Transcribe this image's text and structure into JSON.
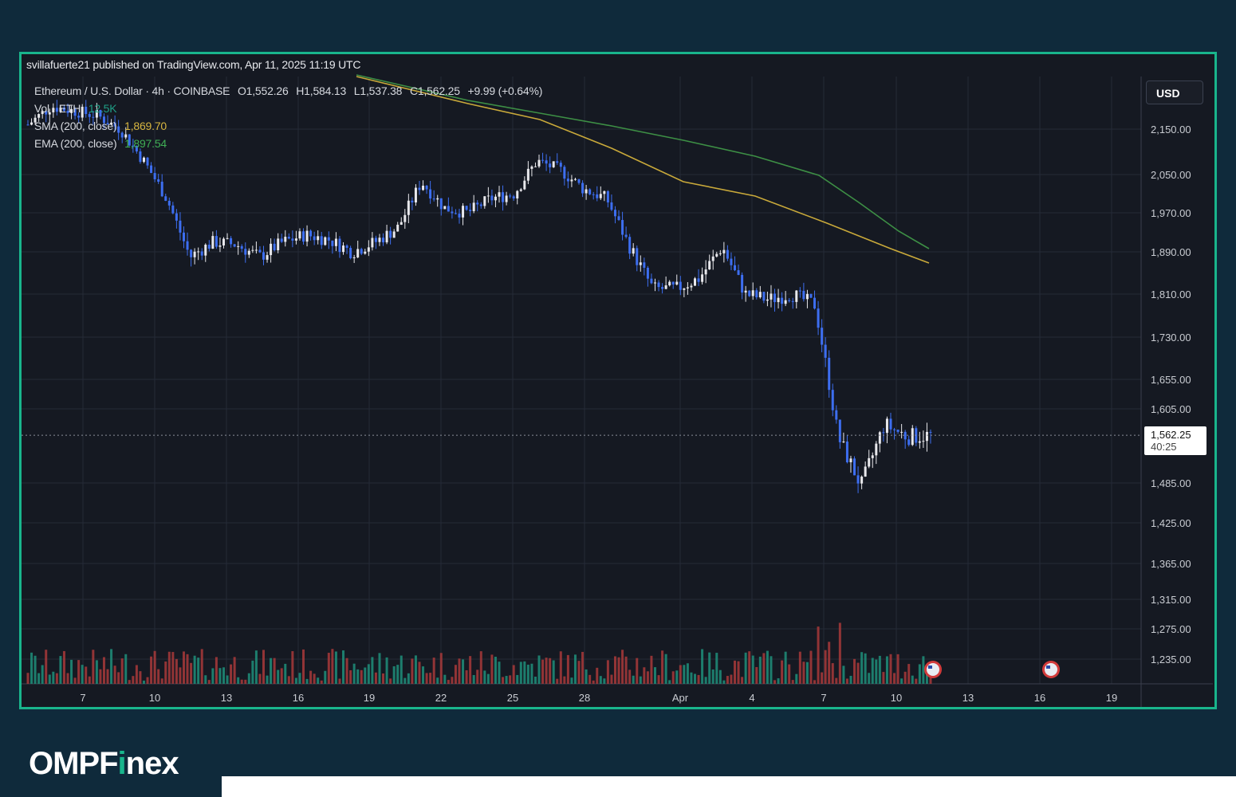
{
  "header": {
    "published": "svillafuerte21 published on TradingView.com, Apr 11, 2025 11:19 UTC"
  },
  "legend": {
    "symbol": "Ethereum / U.S. Dollar · 4h · COINBASE",
    "open": "O1,552.26",
    "high": "H1,584.13",
    "low": "L1,537.38",
    "close": "C1,562.25",
    "change": "+9.99 (+0.64%)",
    "vol_label": "Vol · ETH",
    "vol_value": "12.5K",
    "sma_label": "SMA (200, close)",
    "sma_value": "1,869.70",
    "ema_label": "EMA (200, close)",
    "ema_value": "1,897.54"
  },
  "toolbar": {
    "currency": "USD"
  },
  "last_price": {
    "value": "1,562.25",
    "countdown": "40:25"
  },
  "brand": {
    "name_a": "OMPF",
    "name_b": "i",
    "name_c": "nex"
  },
  "colors": {
    "frame": "#19b58c",
    "background": "#0f2a3b",
    "chart_bg": "#151922",
    "up_candle": "#e8e8ec",
    "down_candle": "#3d6ef0",
    "sma": "#c9a93a",
    "ema": "#3d8f45",
    "vol_up": "#1f8f7a",
    "vol_down": "#a83a3a"
  },
  "chart_data": {
    "type": "candlestick",
    "title": "Ethereum / U.S. Dollar · 4h · COINBASE",
    "y_ticks": [
      2150,
      2050,
      1970,
      1890,
      1810,
      1730,
      1655,
      1605,
      1485,
      1425,
      1365,
      1315,
      1275,
      1235
    ],
    "y_tick_labels": [
      "2,150.00",
      "2,050.00",
      "1,970.00",
      "1,890.00",
      "1,810.00",
      "1,730.00",
      "1,655.00",
      "1,605.00",
      "1,485.00",
      "1,425.00",
      "1,365.00",
      "1,315.00",
      "1,275.00",
      "1,235.00"
    ],
    "x_tick_labels": [
      "7",
      "10",
      "13",
      "16",
      "19",
      "22",
      "25",
      "28",
      "Apr",
      "4",
      "7",
      "10",
      "13",
      "16",
      "19"
    ],
    "close_path": [
      [
        "Mar 5",
        2160
      ],
      [
        "Mar 6",
        2200
      ],
      [
        "Mar 7",
        2190
      ],
      [
        "Mar 8",
        2180
      ],
      [
        "Mar 9",
        2150
      ],
      [
        "Mar 10",
        2080
      ],
      [
        "Mar 10 12h",
        2000
      ],
      [
        "Mar 11",
        1880
      ],
      [
        "Mar 11 12h",
        1910
      ],
      [
        "Mar 12",
        1905
      ],
      [
        "Mar 13",
        1880
      ],
      [
        "Mar 14",
        1910
      ],
      [
        "Mar 15",
        1925
      ],
      [
        "Mar 16",
        1915
      ],
      [
        "Mar 17",
        1890
      ],
      [
        "Mar 18",
        1910
      ],
      [
        "Mar 19",
        1940
      ],
      [
        "Mar 20",
        2035
      ],
      [
        "Mar 21",
        1980
      ],
      [
        "Mar 22",
        1970
      ],
      [
        "Mar 23",
        2000
      ],
      [
        "Mar 24",
        2010
      ],
      [
        "Mar 25",
        2080
      ],
      [
        "Mar 26",
        2060
      ],
      [
        "Mar 27",
        2020
      ],
      [
        "Mar 28",
        2000
      ],
      [
        "Mar 29",
        1900
      ],
      [
        "Mar 30",
        1820
      ],
      [
        "Mar 31",
        1820
      ],
      [
        "Apr 1",
        1840
      ],
      [
        "Apr 2",
        1900
      ],
      [
        "Apr 3",
        1810
      ],
      [
        "Apr 4",
        1800
      ],
      [
        "Apr 5",
        1810
      ],
      [
        "Apr 6",
        1790
      ],
      [
        "Apr 7",
        1560
      ],
      [
        "Apr 8",
        1480
      ],
      [
        "Apr 9",
        1580
      ],
      [
        "Apr 10",
        1560
      ],
      [
        "Apr 11",
        1562.25
      ]
    ],
    "sma_200_last": 1869.7,
    "ema_200_last": 1897.54,
    "last_close": 1562.25,
    "grid": true,
    "legend_position": "top-left"
  }
}
